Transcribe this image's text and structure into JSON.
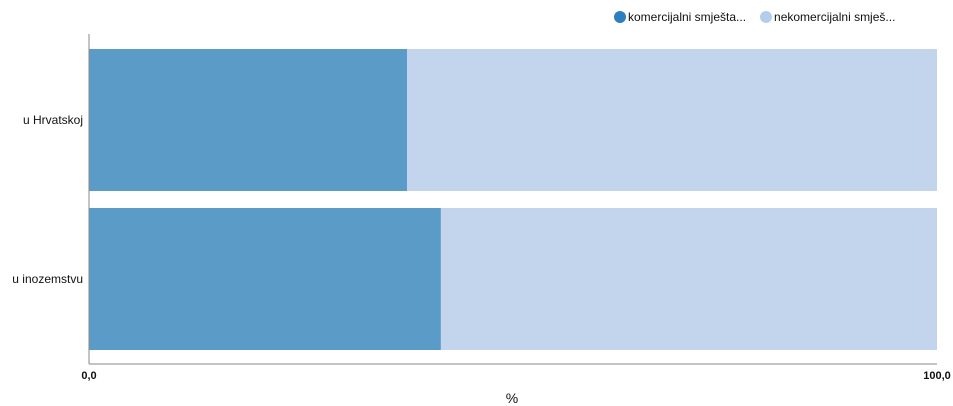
{
  "chart_data": {
    "type": "bar",
    "orientation": "horizontal",
    "stacked": true,
    "categories": [
      "u Hrvatskoj",
      "u inozemstvu"
    ],
    "series": [
      {
        "name": "komercijalni smješta...",
        "color": "#5b9bc8",
        "legend_color": "#2e7fc0",
        "values": [
          37.5,
          41.5
        ]
      },
      {
        "name": "nekomercijalni smješ...",
        "color": "#c3d5ec",
        "legend_color": "#b5cdec",
        "values": [
          62.5,
          58.5
        ]
      }
    ],
    "xlabel": "%",
    "ylabel": "",
    "xlim": [
      0,
      100
    ],
    "x_tick_labels": [
      "0,0",
      "100,0"
    ],
    "grid": false,
    "legend_position": "top-right"
  }
}
